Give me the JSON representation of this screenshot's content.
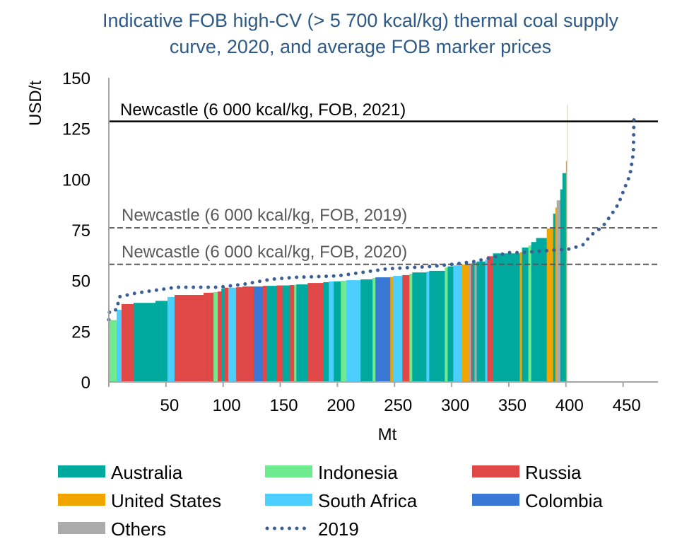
{
  "chart_data": {
    "type": "bar",
    "subtype": "supply-curve (variable-width bars)",
    "title": "Indicative FOB high-CV (> 5 700 kcal/kg) thermal coal supply curve, 2020, and average FOB marker prices",
    "title_lines": [
      "Indicative FOB high-CV (> 5 700 kcal/kg) thermal coal supply",
      "curve, 2020, and average FOB marker prices"
    ],
    "xlabel": "Mt",
    "ylabel": "USD/t",
    "xlim": [
      0,
      480
    ],
    "ylim": [
      0,
      150
    ],
    "xticks": [
      "50",
      "100",
      "150",
      "200",
      "250",
      "300",
      "350",
      "400",
      "450"
    ],
    "yticks": [
      "0",
      "25",
      "50",
      "75",
      "100",
      "125",
      "150"
    ],
    "grid": false,
    "legend_position": "bottom",
    "countries": {
      "AUS": {
        "name": "Australia",
        "color": "#00A99D"
      },
      "IDN": {
        "name": "Indonesia",
        "color": "#6EEB8E"
      },
      "RUS": {
        "name": "Russia",
        "color": "#E04848"
      },
      "USA": {
        "name": "United States",
        "color": "#F0A500"
      },
      "ZAF": {
        "name": "South Africa",
        "color": "#4CCFFF"
      },
      "COL": {
        "name": "Colombia",
        "color": "#3A78D6"
      },
      "OTH": {
        "name": "Others",
        "color": "#ABABAB"
      }
    },
    "bars_fields": [
      "volume_Mt",
      "cost_USD_per_t",
      "country"
    ],
    "bars": [
      [
        6.8,
        30.5,
        "IDN"
      ],
      [
        4.3,
        35.6,
        "ZAF"
      ],
      [
        10.5,
        38.4,
        "RUS"
      ],
      [
        19.2,
        39,
        "AUS"
      ],
      [
        10.5,
        40,
        "AUS"
      ],
      [
        6.2,
        41.9,
        "ZAF"
      ],
      [
        25.4,
        42.9,
        "RUS"
      ],
      [
        8.7,
        44,
        "RUS"
      ],
      [
        3.7,
        44.3,
        "IDN"
      ],
      [
        3.1,
        44.6,
        "RUS"
      ],
      [
        2.5,
        46,
        "AUS"
      ],
      [
        3.7,
        46.5,
        "RUS"
      ],
      [
        6.8,
        46.5,
        "ZAF"
      ],
      [
        5.6,
        46.7,
        "RUS"
      ],
      [
        9.9,
        47.1,
        "RUS"
      ],
      [
        8.0,
        47.1,
        "COL"
      ],
      [
        3.1,
        47.4,
        "RUS"
      ],
      [
        8.7,
        47.4,
        "AUS"
      ],
      [
        5.6,
        47.6,
        "RUS"
      ],
      [
        6.2,
        47.6,
        "AUS"
      ],
      [
        3.7,
        47.8,
        "RUS"
      ],
      [
        1.9,
        47.9,
        "IDN"
      ],
      [
        9.9,
        48.1,
        "AUS"
      ],
      [
        13.6,
        48.8,
        "RUS"
      ],
      [
        4.9,
        49.2,
        "AUS"
      ],
      [
        4.3,
        49.6,
        "ZAF"
      ],
      [
        6.2,
        49.6,
        "AUS"
      ],
      [
        4.9,
        49.9,
        "IDN"
      ],
      [
        12.4,
        50.2,
        "ZAF"
      ],
      [
        10.5,
        50.6,
        "AUS"
      ],
      [
        2.5,
        51.3,
        "IDN"
      ],
      [
        13.0,
        51.6,
        "COL"
      ],
      [
        2.5,
        51.8,
        "USA"
      ],
      [
        8.0,
        52.3,
        "ZAF"
      ],
      [
        6.2,
        52.7,
        "RUS"
      ],
      [
        2.5,
        53.4,
        "IDN"
      ],
      [
        12.4,
        54,
        "AUS"
      ],
      [
        2.5,
        54.4,
        "ZAF"
      ],
      [
        13.6,
        54.8,
        "AUS"
      ],
      [
        2.5,
        56.4,
        "IDN"
      ],
      [
        4.9,
        57,
        "AUS"
      ],
      [
        7.4,
        57.5,
        "ZAF"
      ],
      [
        6.2,
        57.9,
        "USA"
      ],
      [
        1.9,
        58,
        "OTH"
      ],
      [
        1.2,
        58.5,
        "RUS"
      ],
      [
        1.9,
        58.8,
        "AUS"
      ],
      [
        1.9,
        59,
        "OTH"
      ],
      [
        7.4,
        59.4,
        "AUS"
      ],
      [
        1.9,
        60.3,
        "ZAF"
      ],
      [
        4.9,
        62,
        "RUS"
      ],
      [
        23.5,
        63.4,
        "AUS"
      ],
      [
        1.9,
        64,
        "USA"
      ],
      [
        5.6,
        66.3,
        "AUS"
      ],
      [
        2.5,
        67.3,
        "IDN"
      ],
      [
        4.3,
        69,
        "AUS"
      ],
      [
        9.3,
        71,
        "AUS"
      ],
      [
        5.6,
        75.7,
        "USA"
      ],
      [
        1.9,
        83,
        "AUS"
      ],
      [
        1.2,
        86,
        "USA"
      ],
      [
        3.1,
        89.6,
        "OTH"
      ],
      [
        1.9,
        95,
        "AUS"
      ],
      [
        3.1,
        103,
        "AUS"
      ],
      [
        0.9,
        109,
        "USA"
      ]
    ],
    "series": [
      {
        "name": "2019",
        "color": "#3B5E96",
        "style": "dotted",
        "x": [
          0,
          0.6,
          6.8,
          9.3,
          22,
          33,
          47,
          59,
          96,
          117,
          142,
          163,
          200,
          244,
          284,
          300,
          319,
          338,
          348,
          361,
          404,
          415,
          422,
          432,
          440,
          446,
          452,
          456,
          459,
          459.5
        ],
        "y": [
          30.7,
          35,
          35.6,
          42,
          43.6,
          44.6,
          45.7,
          46.7,
          46.7,
          48.1,
          50.6,
          51.6,
          52.3,
          55.8,
          57,
          58,
          59.3,
          61.7,
          63.8,
          63.8,
          65.6,
          67.7,
          72.5,
          76.5,
          82.7,
          87.9,
          96.6,
          102,
          113,
          129.7
        ]
      }
    ],
    "reference_lines": [
      {
        "label": "Newcastle (6 000 kcal/kg, FOB, 2021)",
        "value": 128.5,
        "style": "solid",
        "color": "#000000"
      },
      {
        "label": "Newcastle (6 000 kcal/kg, FOB, 2019)",
        "value": 76,
        "style": "dashed",
        "color": "#595959"
      },
      {
        "label": "Newcastle (6 000 kcal/kg, FOB, 2020)",
        "value": 58,
        "style": "dashed",
        "color": "#595959"
      }
    ],
    "legend": [
      "Australia",
      "Indonesia",
      "Russia",
      "United States",
      "South Africa",
      "Colombia",
      "Others",
      "2019"
    ]
  }
}
